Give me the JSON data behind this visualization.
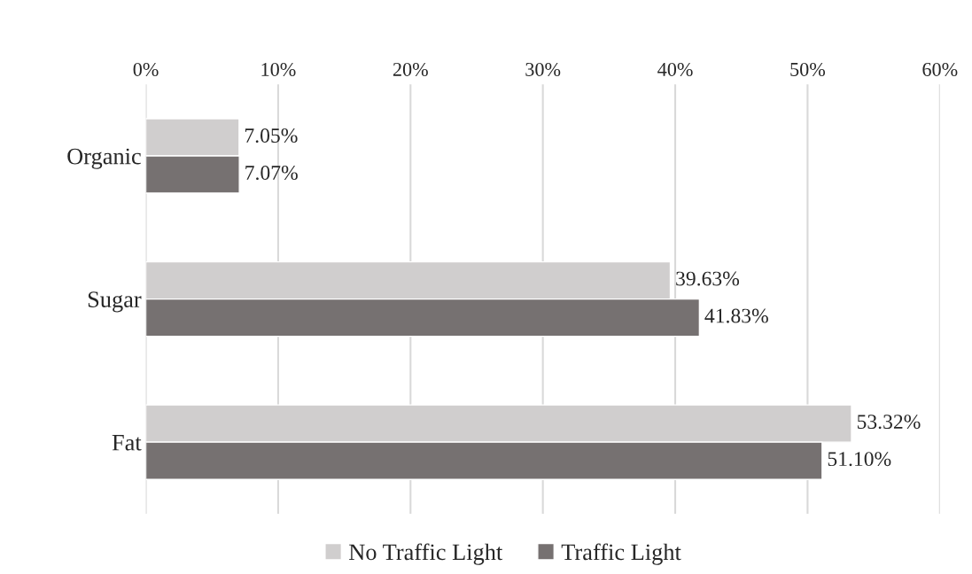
{
  "chart_data": {
    "type": "bar",
    "orientation": "horizontal",
    "categories": [
      "Organic",
      "Sugar",
      "Fat"
    ],
    "series": [
      {
        "name": "No Traffic Light",
        "color": "#d0cece",
        "values": [
          7.05,
          39.63,
          53.32
        ],
        "value_labels": [
          "7.05%",
          "39.63%",
          "53.32%"
        ]
      },
      {
        "name": "Traffic Light",
        "color": "#767171",
        "values": [
          7.07,
          41.83,
          51.1
        ],
        "value_labels": [
          "7.07%",
          "41.83%",
          "51.10%"
        ]
      }
    ],
    "xlim": [
      0,
      60
    ],
    "xticks": [
      {
        "value": 0,
        "label": "0%"
      },
      {
        "value": 10,
        "label": "10%"
      },
      {
        "value": 20,
        "label": "20%"
      },
      {
        "value": 30,
        "label": "30%"
      },
      {
        "value": 40,
        "label": "40%"
      },
      {
        "value": 50,
        "label": "50%"
      },
      {
        "value": 60,
        "label": "60%"
      }
    ],
    "grid": "x",
    "legend": "bottom"
  }
}
